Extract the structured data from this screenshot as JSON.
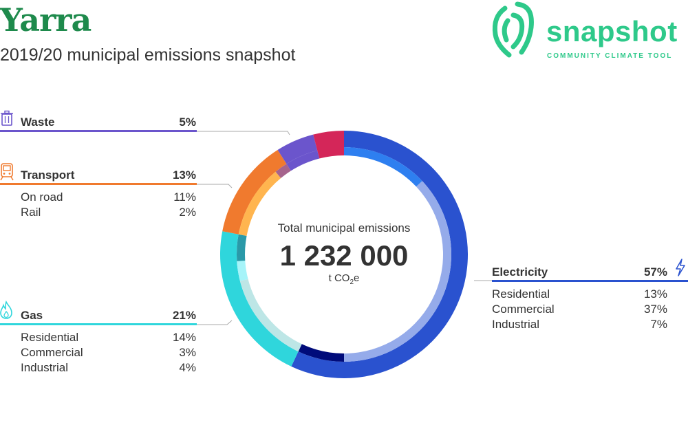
{
  "header": {
    "title": "Yarra",
    "subtitle": "2019/20 municipal emissions snapshot"
  },
  "logo": {
    "word": "snapshot",
    "tagline": "COMMUNITY CLIMATE TOOL",
    "color": "#2ec98a"
  },
  "center": {
    "label": "Total municipal emissions",
    "value": "1 232 000",
    "unit_prefix": "t CO",
    "unit_sub": "2",
    "unit_suffix": "e"
  },
  "chart_data": {
    "type": "pie",
    "title": "",
    "total": 1232000,
    "unit": "t CO2e",
    "categories": [
      {
        "name": "Electricity",
        "pct": "57%",
        "value": 57,
        "color": "#2a52cf",
        "icon": "lightning-icon",
        "subs": [
          {
            "name": "Residential",
            "pct": "13%",
            "value": 13,
            "color": "#2e7ff0"
          },
          {
            "name": "Commercial",
            "pct": "37%",
            "value": 37,
            "color": "#95abea"
          },
          {
            "name": "Industrial",
            "pct": "7%",
            "value": 7,
            "color": "#000b7a"
          }
        ]
      },
      {
        "name": "Gas",
        "pct": "21%",
        "value": 21,
        "color": "#2fd6dc",
        "icon": "flame-icon",
        "subs": [
          {
            "name": "Residential",
            "pct": "14%",
            "value": 14,
            "color": "#bde6e6"
          },
          {
            "name": "Commercial",
            "pct": "3%",
            "value": 3,
            "color": "#a6f4f9"
          },
          {
            "name": "Industrial",
            "pct": "4%",
            "value": 4,
            "color": "#2a99a8"
          }
        ]
      },
      {
        "name": "Transport",
        "pct": "13%",
        "value": 13,
        "color": "#f07a2e",
        "icon": "train-icon",
        "subs": [
          {
            "name": "On road",
            "pct": "11%",
            "value": 11,
            "color": "#ffb54f"
          },
          {
            "name": "Rail",
            "pct": "2%",
            "value": 2,
            "color": "#a6648c"
          }
        ]
      },
      {
        "name": "Waste",
        "pct": "5%",
        "value": 5,
        "color": "#6b55cc",
        "icon": "trash-icon",
        "subs": []
      }
    ],
    "unlabeled_segment": {
      "value": 4,
      "color": "#d42659"
    }
  }
}
